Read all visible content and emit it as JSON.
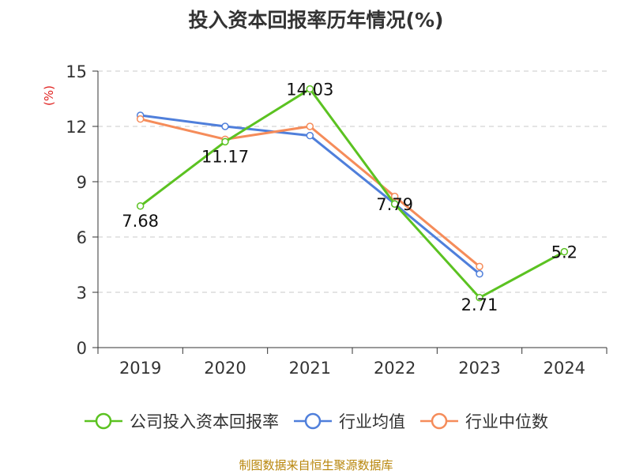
{
  "title": "投入资本回报率历年情况(%)",
  "source_note": "制图数据来自恒生聚源数据库",
  "chart_data": {
    "type": "line",
    "title": "投入资本回报率历年情况(%)",
    "ylabel": "(%)",
    "xlabel": "",
    "categories": [
      "2019",
      "2020",
      "2021",
      "2022",
      "2023",
      "2024"
    ],
    "ylim": [
      0,
      15
    ],
    "yticks": [
      0,
      3,
      6,
      9,
      12,
      15
    ],
    "grid": true,
    "legend_position": "bottom",
    "series": [
      {
        "name": "公司投入资本回报率",
        "color": "#5bc221",
        "values": [
          7.68,
          11.17,
          14.03,
          7.79,
          2.71,
          5.2
        ],
        "labels": [
          "7.68",
          "11.17",
          "14.03",
          "7.79",
          "2.71",
          "5.2"
        ]
      },
      {
        "name": "行业均值",
        "color": "#4f7fdb",
        "values": [
          12.6,
          12.0,
          11.5,
          7.8,
          4.0,
          null
        ]
      },
      {
        "name": "行业中位数",
        "color": "#f58c5a",
        "values": [
          12.4,
          11.3,
          12.0,
          8.2,
          4.4,
          null
        ]
      }
    ]
  }
}
